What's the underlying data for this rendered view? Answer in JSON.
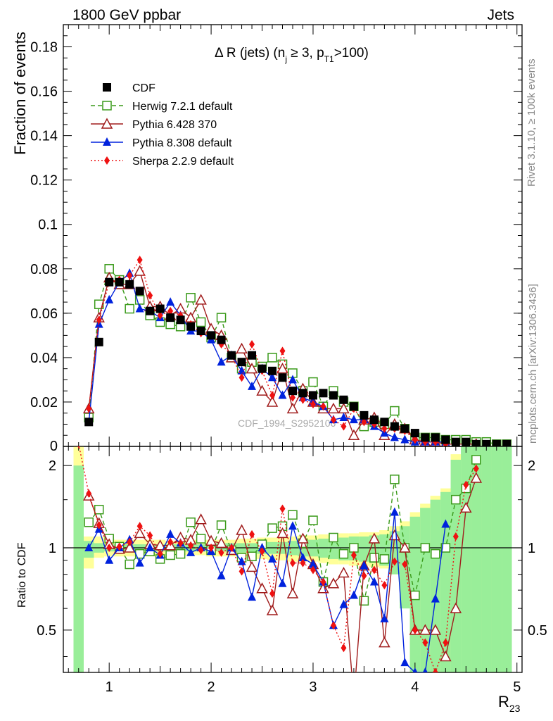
{
  "header": {
    "left": "1800 GeV ppbar",
    "right": "Jets"
  },
  "side": {
    "rivet": "Rivet 3.1.10, ≥ 100k events",
    "mcplots": "mcplots.cern.ch [arXiv:1306.3436]"
  },
  "watermark": "CDF_1994_S2952106",
  "observable": {
    "main": "Δ R (jets) (n",
    "sub1": "j",
    "mid": " ≥ 3, p",
    "sub2": "T1",
    "end": ">100)"
  },
  "top_ylabel": "Fraction of events",
  "bottom_ylabel": "Ratio to CDF",
  "xlabel_main": "R",
  "xlabel_sub": "23",
  "chart_data": [
    {
      "type": "line",
      "panel": "main",
      "ylabel": "Fraction of events",
      "xlim": [
        0.55,
        5.05
      ],
      "ylim": [
        0,
        0.19
      ],
      "x_ticks": [
        1,
        2,
        3,
        4,
        5
      ],
      "y_ticks": [
        0.02,
        0.04,
        0.06,
        0.08,
        0.1,
        0.12,
        0.14,
        0.16,
        0.18
      ],
      "y_tick_labels": [
        "0.02",
        "0.04",
        "0.06",
        "0.08",
        "0.1",
        "0.12",
        "0.14",
        "0.16",
        "0.18"
      ],
      "legend_position": "top-left",
      "series": [
        {
          "name": "CDF",
          "color": "#000000",
          "marker": "square-filled",
          "style": "none",
          "x": [
            0.8,
            0.9,
            1.0,
            1.1,
            1.2,
            1.3,
            1.4,
            1.5,
            1.6,
            1.7,
            1.8,
            1.9,
            2.0,
            2.1,
            2.2,
            2.3,
            2.4,
            2.5,
            2.6,
            2.7,
            2.8,
            2.9,
            3.0,
            3.1,
            3.2,
            3.3,
            3.4,
            3.5,
            3.6,
            3.7,
            3.8,
            3.9,
            4.0,
            4.1,
            4.2,
            4.3,
            4.4,
            4.5,
            4.6,
            4.7,
            4.8,
            4.9
          ],
          "y": [
            0.011,
            0.047,
            0.074,
            0.074,
            0.073,
            0.07,
            0.061,
            0.062,
            0.058,
            0.057,
            0.054,
            0.052,
            0.05,
            0.048,
            0.041,
            0.038,
            0.041,
            0.035,
            0.034,
            0.031,
            0.025,
            0.024,
            0.023,
            0.024,
            0.023,
            0.021,
            0.018,
            0.014,
            0.012,
            0.011,
            0.009,
            0.008,
            0.006,
            0.004,
            0.004,
            0.003,
            0.002,
            0.002,
            0.001,
            0.001,
            0.001,
            0.001
          ]
        },
        {
          "name": "Herwig 7.2.1 default",
          "color": "#3a9a1a",
          "marker": "square-open",
          "style": "dashed",
          "x": [
            0.8,
            0.9,
            1.0,
            1.1,
            1.2,
            1.3,
            1.4,
            1.5,
            1.6,
            1.7,
            1.8,
            1.9,
            2.0,
            2.1,
            2.2,
            2.3,
            2.4,
            2.5,
            2.6,
            2.7,
            2.8,
            2.9,
            3.0,
            3.1,
            3.2,
            3.3,
            3.4,
            3.5,
            3.6,
            3.7,
            3.8,
            3.9,
            4.0,
            4.1,
            4.2,
            4.3,
            4.4,
            4.5,
            4.6,
            4.7,
            4.8,
            4.9
          ],
          "y": [
            0.013,
            0.064,
            0.08,
            0.075,
            0.062,
            0.066,
            0.059,
            0.056,
            0.055,
            0.054,
            0.067,
            0.056,
            0.049,
            0.058,
            0.04,
            0.035,
            0.038,
            0.036,
            0.04,
            0.037,
            0.033,
            0.025,
            0.029,
            0.018,
            0.025,
            0.02,
            0.018,
            0.009,
            0.011,
            0.01,
            0.016,
            0.008,
            0.004,
            0.004,
            0.004,
            0.003,
            0.003,
            0.003,
            0.002,
            0.002,
            0.001,
            0.001
          ]
        },
        {
          "name": "Pythia 6.428 370",
          "color": "#a01c1c",
          "marker": "triangle-open",
          "style": "solid",
          "x": [
            0.8,
            0.9,
            1.0,
            1.1,
            1.2,
            1.3,
            1.4,
            1.5,
            1.6,
            1.7,
            1.8,
            1.9,
            2.0,
            2.1,
            2.2,
            2.3,
            2.4,
            2.5,
            2.6,
            2.7,
            2.8,
            2.9,
            3.0,
            3.1,
            3.2,
            3.3,
            3.4,
            3.5,
            3.6,
            3.7,
            3.8,
            3.9,
            4.0,
            4.1,
            4.2,
            4.3,
            4.4,
            4.5,
            4.6
          ],
          "y": [
            0.017,
            0.058,
            0.076,
            0.073,
            0.073,
            0.079,
            0.063,
            0.063,
            0.059,
            0.062,
            0.058,
            0.066,
            0.053,
            0.05,
            0.04,
            0.044,
            0.035,
            0.025,
            0.02,
            0.035,
            0.017,
            0.026,
            0.02,
            0.017,
            0.017,
            0.017,
            0.005,
            0.012,
            0.013,
            0.005,
            0.01,
            0.008,
            0.003,
            0.002,
            0.002,
            0.001,
            0.001,
            0.001,
            0.001
          ]
        },
        {
          "name": "Pythia 8.308 default",
          "color": "#0022dd",
          "marker": "triangle-filled",
          "style": "solid",
          "x": [
            0.8,
            0.9,
            1.0,
            1.1,
            1.2,
            1.3,
            1.4,
            1.5,
            1.6,
            1.7,
            1.8,
            1.9,
            2.0,
            2.1,
            2.2,
            2.3,
            2.4,
            2.5,
            2.6,
            2.7,
            2.8,
            2.9,
            3.0,
            3.1,
            3.2,
            3.3,
            3.4,
            3.5,
            3.6,
            3.7,
            3.8,
            3.9,
            4.0,
            4.1,
            4.2,
            4.3
          ],
          "y": [
            0.011,
            0.055,
            0.066,
            0.074,
            0.078,
            0.062,
            0.061,
            0.058,
            0.065,
            0.059,
            0.052,
            0.052,
            0.048,
            0.038,
            0.041,
            0.034,
            0.027,
            0.035,
            0.031,
            0.023,
            0.03,
            0.022,
            0.02,
            0.018,
            0.012,
            0.013,
            0.012,
            0.012,
            0.009,
            0.006,
            0.004,
            0.003,
            0.002,
            0.002,
            0.002,
            0.002
          ]
        },
        {
          "name": "Sherpa 2.2.9 default",
          "color": "#ee1111",
          "marker": "diamond-filled",
          "style": "dotted",
          "x": [
            0.8,
            0.9,
            1.0,
            1.1,
            1.2,
            1.3,
            1.4,
            1.5,
            1.6,
            1.7,
            1.8,
            1.9,
            2.0,
            2.1,
            2.2,
            2.3,
            2.4,
            2.5,
            2.6,
            2.7,
            2.8,
            2.9,
            3.0,
            3.1,
            3.2,
            3.3,
            3.4,
            3.5,
            3.6,
            3.7,
            3.8,
            3.9,
            4.0,
            4.1,
            4.2,
            4.3,
            4.4,
            4.5,
            4.6
          ],
          "y": [
            0.017,
            0.057,
            0.074,
            0.075,
            0.077,
            0.084,
            0.068,
            0.059,
            0.061,
            0.059,
            0.055,
            0.051,
            0.05,
            0.046,
            0.041,
            0.031,
            0.046,
            0.034,
            0.023,
            0.043,
            0.022,
            0.021,
            0.019,
            0.018,
            0.012,
            0.009,
            0.017,
            0.011,
            0.01,
            0.008,
            0.008,
            0.007,
            0.003,
            0.002,
            0.002,
            0.001,
            0.001,
            0.001,
            0.001
          ]
        }
      ]
    },
    {
      "type": "line",
      "panel": "ratio",
      "ylabel": "Ratio to CDF",
      "xlabel": "R23",
      "xlim": [
        0.55,
        5.05
      ],
      "ylim": [
        0.35,
        2.35
      ],
      "y_ticks": [
        0.5,
        1,
        2
      ],
      "y_tick_labels": [
        "0.5",
        "1",
        "2"
      ],
      "x_ticks": [
        1,
        2,
        3,
        4,
        5
      ],
      "x_tick_labels": [
        "1",
        "2",
        "3",
        "4",
        "5"
      ],
      "reference_line": 1,
      "bands": {
        "note": "data uncertainty bands (yellow = total, green = stat)",
        "x_edges": [
          0.65,
          0.75,
          0.85,
          0.95,
          1.05,
          1.15,
          1.25,
          1.35,
          1.45,
          1.55,
          1.65,
          1.75,
          1.85,
          1.95,
          2.05,
          2.15,
          2.25,
          2.35,
          2.45,
          2.55,
          2.65,
          2.75,
          2.85,
          2.95,
          3.05,
          3.15,
          3.25,
          3.35,
          3.45,
          3.55,
          3.65,
          3.75,
          3.85,
          3.95,
          4.05,
          4.15,
          4.25,
          4.35,
          4.45,
          4.55,
          4.65,
          4.75,
          4.85,
          4.95
        ],
        "yellow_low": [
          0.35,
          0.84,
          0.92,
          0.93,
          0.93,
          0.93,
          0.94,
          0.93,
          0.93,
          0.94,
          0.94,
          0.94,
          0.94,
          0.93,
          0.93,
          0.93,
          0.92,
          0.91,
          0.91,
          0.9,
          0.9,
          0.89,
          0.89,
          0.89,
          0.88,
          0.87,
          0.87,
          0.86,
          0.86,
          0.85,
          0.84,
          0.8,
          0.65,
          0.35,
          0.35,
          0.35,
          0.35,
          0.35,
          0.35,
          0.35,
          0.35,
          0.35,
          0.35
        ],
        "yellow_high": [
          2.35,
          1.1,
          1.1,
          1.08,
          1.07,
          1.07,
          1.07,
          1.07,
          1.07,
          1.06,
          1.06,
          1.07,
          1.07,
          1.07,
          1.07,
          1.07,
          1.08,
          1.08,
          1.09,
          1.09,
          1.1,
          1.1,
          1.11,
          1.11,
          1.12,
          1.12,
          1.13,
          1.13,
          1.14,
          1.14,
          1.16,
          1.2,
          1.25,
          1.35,
          1.45,
          1.55,
          1.65,
          2.2,
          2.35,
          2.35,
          2.35,
          2.35,
          2.35
        ],
        "green_low": [
          0.35,
          0.92,
          0.96,
          0.97,
          0.97,
          0.97,
          0.97,
          0.97,
          0.97,
          0.97,
          0.97,
          0.97,
          0.97,
          0.97,
          0.97,
          0.96,
          0.96,
          0.96,
          0.95,
          0.95,
          0.95,
          0.94,
          0.93,
          0.93,
          0.92,
          0.91,
          0.9,
          0.9,
          0.89,
          0.88,
          0.86,
          0.8,
          0.6,
          0.35,
          0.35,
          0.35,
          0.35,
          0.35,
          0.35,
          0.35,
          0.35,
          0.35,
          0.35
        ],
        "green_high": [
          2.0,
          1.06,
          1.04,
          1.03,
          1.03,
          1.03,
          1.03,
          1.03,
          1.03,
          1.03,
          1.03,
          1.03,
          1.03,
          1.04,
          1.04,
          1.04,
          1.04,
          1.04,
          1.05,
          1.05,
          1.05,
          1.06,
          1.07,
          1.07,
          1.08,
          1.08,
          1.09,
          1.1,
          1.1,
          1.11,
          1.12,
          1.15,
          1.2,
          1.3,
          1.4,
          1.5,
          1.6,
          2.1,
          2.35,
          2.35,
          2.35,
          2.35,
          2.35
        ]
      },
      "series": [
        {
          "name": "Herwig 7.2.1 default",
          "color": "#3a9a1a",
          "marker": "square-open",
          "style": "dashed",
          "x": [
            0.8,
            0.9,
            1.0,
            1.1,
            1.2,
            1.3,
            1.4,
            1.5,
            1.6,
            1.7,
            1.8,
            1.9,
            2.0,
            2.1,
            2.2,
            2.3,
            2.4,
            2.5,
            2.6,
            2.7,
            2.8,
            2.9,
            3.0,
            3.1,
            3.2,
            3.3,
            3.4,
            3.5,
            3.6,
            3.7,
            3.8,
            3.9,
            4.0,
            4.1,
            4.2,
            4.3,
            4.4,
            4.5,
            4.6
          ],
          "y": [
            1.24,
            1.38,
            1.08,
            1.01,
            0.87,
            0.95,
            0.97,
            0.91,
            0.94,
            0.95,
            1.24,
            1.08,
            0.98,
            1.21,
            0.98,
            0.92,
            0.93,
            1.03,
            1.18,
            1.2,
            1.32,
            1.04,
            1.26,
            0.75,
            1.09,
            0.95,
            1.0,
            0.64,
            0.92,
            0.91,
            1.78,
            1.0,
            0.67,
            1.0,
            0.95,
            1.0,
            1.5,
            1.65,
            2.1
          ]
        },
        {
          "name": "Pythia 6.428 370",
          "color": "#a01c1c",
          "marker": "triangle-open",
          "style": "solid",
          "x": [
            0.8,
            0.9,
            1.0,
            1.1,
            1.2,
            1.3,
            1.4,
            1.5,
            1.6,
            1.7,
            1.8,
            1.9,
            2.0,
            2.1,
            2.2,
            2.3,
            2.4,
            2.5,
            2.6,
            2.7,
            2.8,
            2.9,
            3.0,
            3.1,
            3.2,
            3.3,
            3.4,
            3.5,
            3.6,
            3.7,
            3.8,
            3.9,
            4.0,
            4.1,
            4.2,
            4.3,
            4.4,
            4.5,
            4.6
          ],
          "y": [
            1.55,
            1.23,
            1.03,
            0.99,
            1.0,
            1.13,
            1.03,
            1.02,
            1.02,
            1.09,
            1.07,
            1.27,
            1.06,
            1.04,
            0.98,
            1.16,
            0.85,
            0.71,
            0.59,
            1.13,
            0.68,
            1.08,
            0.87,
            0.71,
            0.74,
            0.81,
            0.28,
            0.86,
            1.08,
            0.45,
            1.11,
            1.0,
            0.5,
            0.5,
            0.5,
            0.4,
            0.6,
            1.4,
            1.8
          ]
        },
        {
          "name": "Pythia 8.308 default",
          "color": "#0022dd",
          "marker": "triangle-filled",
          "style": "solid",
          "x": [
            0.8,
            0.9,
            1.0,
            1.1,
            1.2,
            1.3,
            1.4,
            1.5,
            1.6,
            1.7,
            1.8,
            1.9,
            2.0,
            2.1,
            2.2,
            2.3,
            2.4,
            2.5,
            2.6,
            2.7,
            2.8,
            2.9,
            3.0,
            3.1,
            3.2,
            3.3,
            3.4,
            3.5,
            3.6,
            3.7,
            3.8,
            3.9,
            4.0,
            4.1,
            4.2,
            4.3
          ],
          "y": [
            1.0,
            1.17,
            0.9,
            1.0,
            1.07,
            0.88,
            1.0,
            0.94,
            1.12,
            1.04,
            0.96,
            1.0,
            0.97,
            0.79,
            1.0,
            0.89,
            0.66,
            1.0,
            0.91,
            0.74,
            1.2,
            0.92,
            0.87,
            0.75,
            0.52,
            0.62,
            0.67,
            0.86,
            0.75,
            0.55,
            1.35,
            0.38,
            0.35,
            0.35,
            0.65,
            1.22
          ]
        },
        {
          "name": "Sherpa 2.2.9 default",
          "color": "#ee1111",
          "marker": "diamond-filled",
          "style": "dotted",
          "x": [
            0.7,
            0.8,
            0.9,
            1.0,
            1.1,
            1.2,
            1.3,
            1.4,
            1.5,
            1.6,
            1.7,
            1.8,
            1.9,
            2.0,
            2.1,
            2.2,
            2.3,
            2.4,
            2.5,
            2.6,
            2.7,
            2.8,
            2.9,
            3.0,
            3.1,
            3.2,
            3.3,
            3.4,
            3.5,
            3.6,
            3.7,
            3.8,
            3.9,
            4.0,
            4.1,
            4.2,
            4.3,
            4.4,
            4.5,
            4.6
          ],
          "y": [
            2.4,
            1.58,
            1.21,
            1.0,
            1.01,
            1.05,
            1.2,
            1.11,
            0.95,
            1.05,
            1.04,
            1.02,
            0.98,
            1.0,
            0.96,
            1.0,
            0.82,
            1.12,
            0.97,
            0.68,
            1.39,
            0.88,
            0.88,
            0.83,
            0.75,
            0.52,
            0.43,
            0.94,
            0.79,
            0.83,
            0.73,
            0.89,
            0.87,
            0.5,
            0.45,
            0.35,
            0.45,
            1.1,
            1.7,
            1.95
          ]
        }
      ]
    }
  ]
}
